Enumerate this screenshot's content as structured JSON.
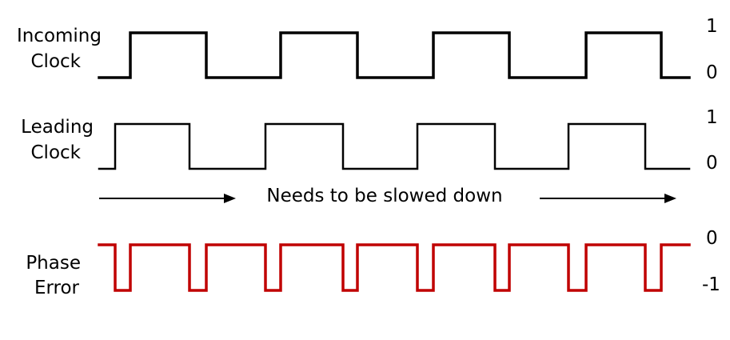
{
  "signals": [
    {
      "id": "incoming-clock",
      "label_lines": [
        "Incoming",
        "Clock"
      ],
      "high_label": "1",
      "low_label": "0",
      "color": "#000000",
      "levels": [
        0,
        1,
        0,
        1,
        0,
        1,
        0,
        1,
        0
      ]
    },
    {
      "id": "leading-clock",
      "label_lines": [
        "Leading",
        "Clock"
      ],
      "high_label": "1",
      "low_label": "0",
      "color": "#000000",
      "levels": [
        0,
        1,
        0,
        1,
        0,
        1,
        0,
        1,
        0
      ]
    },
    {
      "id": "phase-error",
      "label_lines": [
        "Phase",
        "Error"
      ],
      "high_label": "0",
      "low_label": "-1",
      "color": "#c00000",
      "levels": [
        1,
        0,
        1,
        0,
        1,
        0,
        1,
        0,
        1,
        0,
        1,
        0,
        1,
        0,
        1,
        0,
        1
      ]
    }
  ],
  "annotation": {
    "text": "Needs to be slowed down"
  }
}
